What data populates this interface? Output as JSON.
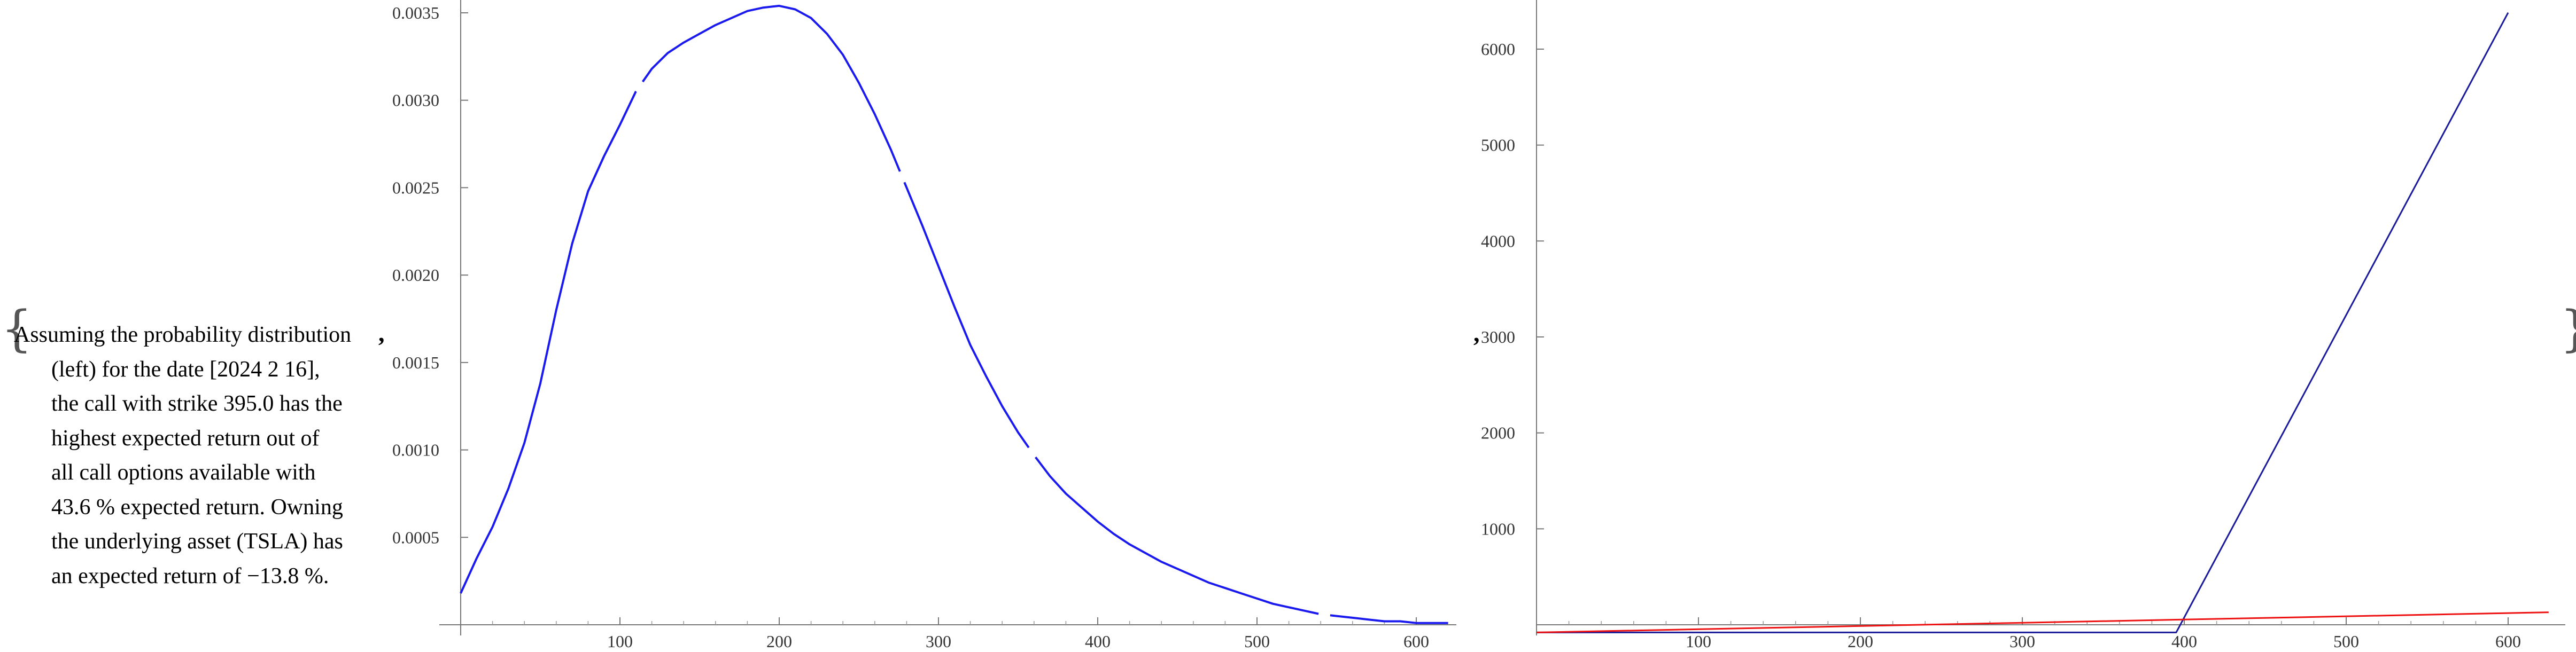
{
  "caption": {
    "lines": [
      "Assuming the probability distribution",
      "(left) for the date [2024 2 16],",
      "the call with strike 395.0 has the",
      "highest expected return out of",
      "all call options available with",
      "43.6 % expected return. Owning",
      "the underlying asset (TSLA) has",
      "an expected return of −13.8 %."
    ]
  },
  "separators": {
    "brace_open": "{",
    "brace_close": "}",
    "comma": ","
  },
  "chart_data": [
    {
      "type": "line",
      "title": "",
      "xlabel": "",
      "ylabel": "",
      "xlim": [
        0,
        625
      ],
      "ylim": [
        0,
        0.0036
      ],
      "grid": false,
      "x_ticks": [
        100,
        200,
        300,
        400,
        500,
        600
      ],
      "x_tick_labels": [
        "100",
        "200",
        "300",
        "400",
        "500",
        "600"
      ],
      "y_ticks": [
        0.0005,
        0.001,
        0.0015,
        0.002,
        0.0025,
        0.003,
        0.0035
      ],
      "y_tick_labels": [
        "0.0005",
        "0.0010",
        "0.0015",
        "0.0020",
        "0.0025",
        "0.0030",
        "0.0035"
      ],
      "series": [
        {
          "color": "#1a1aee",
          "style": "solid",
          "x": [
            0,
            10,
            20,
            30,
            40,
            50,
            60,
            70,
            80,
            90,
            100,
            110,
            120,
            130,
            140,
            150,
            160,
            170,
            180,
            190,
            200,
            210,
            220,
            230,
            240,
            250,
            260,
            270,
            280,
            290,
            300,
            310,
            320,
            330,
            340,
            350,
            360,
            370,
            380,
            390,
            400,
            410,
            420,
            430,
            440,
            450,
            460,
            470,
            480,
            490,
            500,
            510,
            520,
            530,
            540,
            550,
            560,
            570,
            580,
            590,
            600,
            620
          ],
          "y": [
            0.00018,
            0.00038,
            0.00056,
            0.00078,
            0.00104,
            0.00138,
            0.0018,
            0.00218,
            0.00248,
            0.00268,
            0.00286,
            0.00305,
            0.00318,
            0.00327,
            0.00333,
            0.00338,
            0.00343,
            0.00347,
            0.00351,
            0.00353,
            0.00354,
            0.00352,
            0.00347,
            0.00338,
            0.00326,
            0.0031,
            0.00292,
            0.00272,
            0.0025,
            0.00228,
            0.00205,
            0.00182,
            0.0016,
            0.00142,
            0.00125,
            0.0011,
            0.00097,
            0.00085,
            0.00075,
            0.00067,
            0.00059,
            0.00052,
            0.00046,
            0.00041,
            0.00036,
            0.00032,
            0.00028,
            0.00024,
            0.00021,
            0.00018,
            0.00015,
            0.00012,
            0.0001,
            8e-05,
            6e-05,
            5e-05,
            4e-05,
            3e-05,
            2e-05,
            2e-05,
            1e-05,
            1e-05
          ]
        }
      ]
    },
    {
      "type": "line",
      "title": "",
      "xlabel": "",
      "ylabel": "",
      "xlim": [
        0,
        625
      ],
      "ylim": [
        -100,
        6500
      ],
      "grid": false,
      "x_ticks": [
        100,
        200,
        300,
        400,
        500,
        600
      ],
      "x_tick_labels": [
        "100",
        "200",
        "300",
        "400",
        "500",
        "600"
      ],
      "y_ticks": [
        1000,
        2000,
        3000,
        4000,
        5000,
        6000
      ],
      "y_tick_labels": [
        "1000",
        "2000",
        "3000",
        "4000",
        "5000",
        "6000"
      ],
      "series": [
        {
          "color": "#1a1a99",
          "x": [
            0,
            395,
            600
          ],
          "y": [
            -80,
            -80,
            6380
          ]
        },
        {
          "color": "#ee1111",
          "x": [
            0,
            625
          ],
          "y": [
            -80,
            130
          ]
        }
      ]
    }
  ]
}
